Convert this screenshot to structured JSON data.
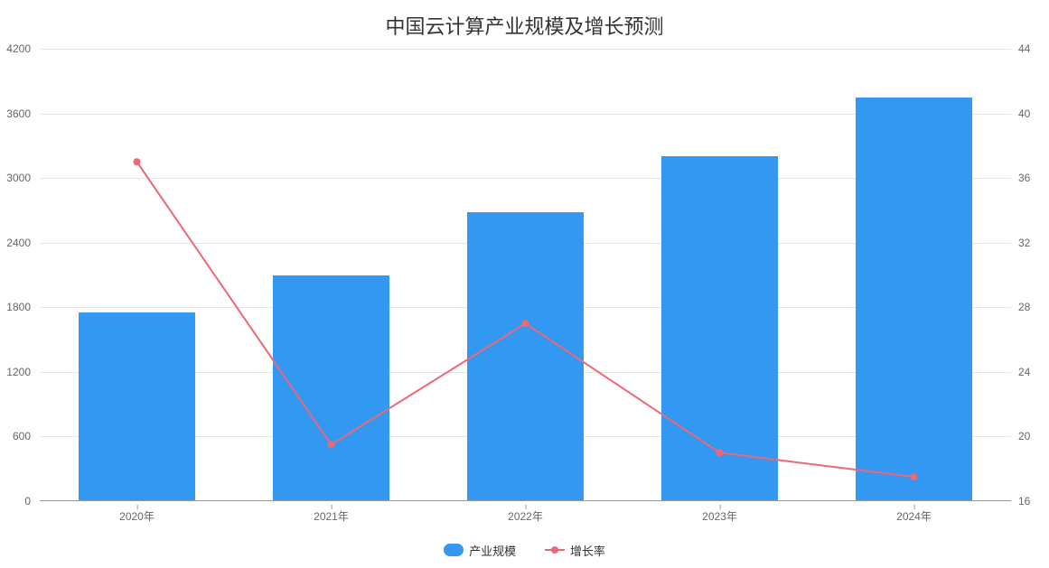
{
  "chart": {
    "type": "bar+line",
    "title": "中国云计算产业规模及增长预测",
    "title_fontsize": 22,
    "title_color": "#333333",
    "background_color": "#ffffff",
    "grid_color": "#e6e6e6",
    "axis_line_color": "#999999",
    "tick_label_color": "#666666",
    "tick_label_fontsize": 12,
    "categories": [
      "2020年",
      "2021年",
      "2022年",
      "2023年",
      "2024年"
    ],
    "series": {
      "bar": {
        "name": "产业规模",
        "values": [
          1750,
          2100,
          2680,
          3200,
          3750
        ],
        "color": "#3398f2",
        "bar_width_fraction": 0.6,
        "axis": "left"
      },
      "line": {
        "name": "增长率",
        "values": [
          37.0,
          19.5,
          27.0,
          19.0,
          17.5
        ],
        "color": "#eb6877",
        "line_width": 2,
        "marker_size": 8,
        "marker_shape": "circle",
        "axis": "right"
      }
    },
    "y_left": {
      "min": 0,
      "max": 4200,
      "tick_step": 600,
      "ticks": [
        0,
        600,
        1200,
        1800,
        2400,
        3000,
        3600,
        4200
      ]
    },
    "y_right": {
      "min": 16,
      "max": 44,
      "tick_step": 4,
      "ticks": [
        16,
        20,
        24,
        28,
        32,
        36,
        40,
        44
      ]
    },
    "legend": {
      "position": "bottom",
      "items": [
        {
          "label": "产业规模",
          "type": "bar",
          "color": "#3398f2"
        },
        {
          "label": "增长率",
          "type": "line",
          "color": "#eb6877"
        }
      ]
    }
  }
}
